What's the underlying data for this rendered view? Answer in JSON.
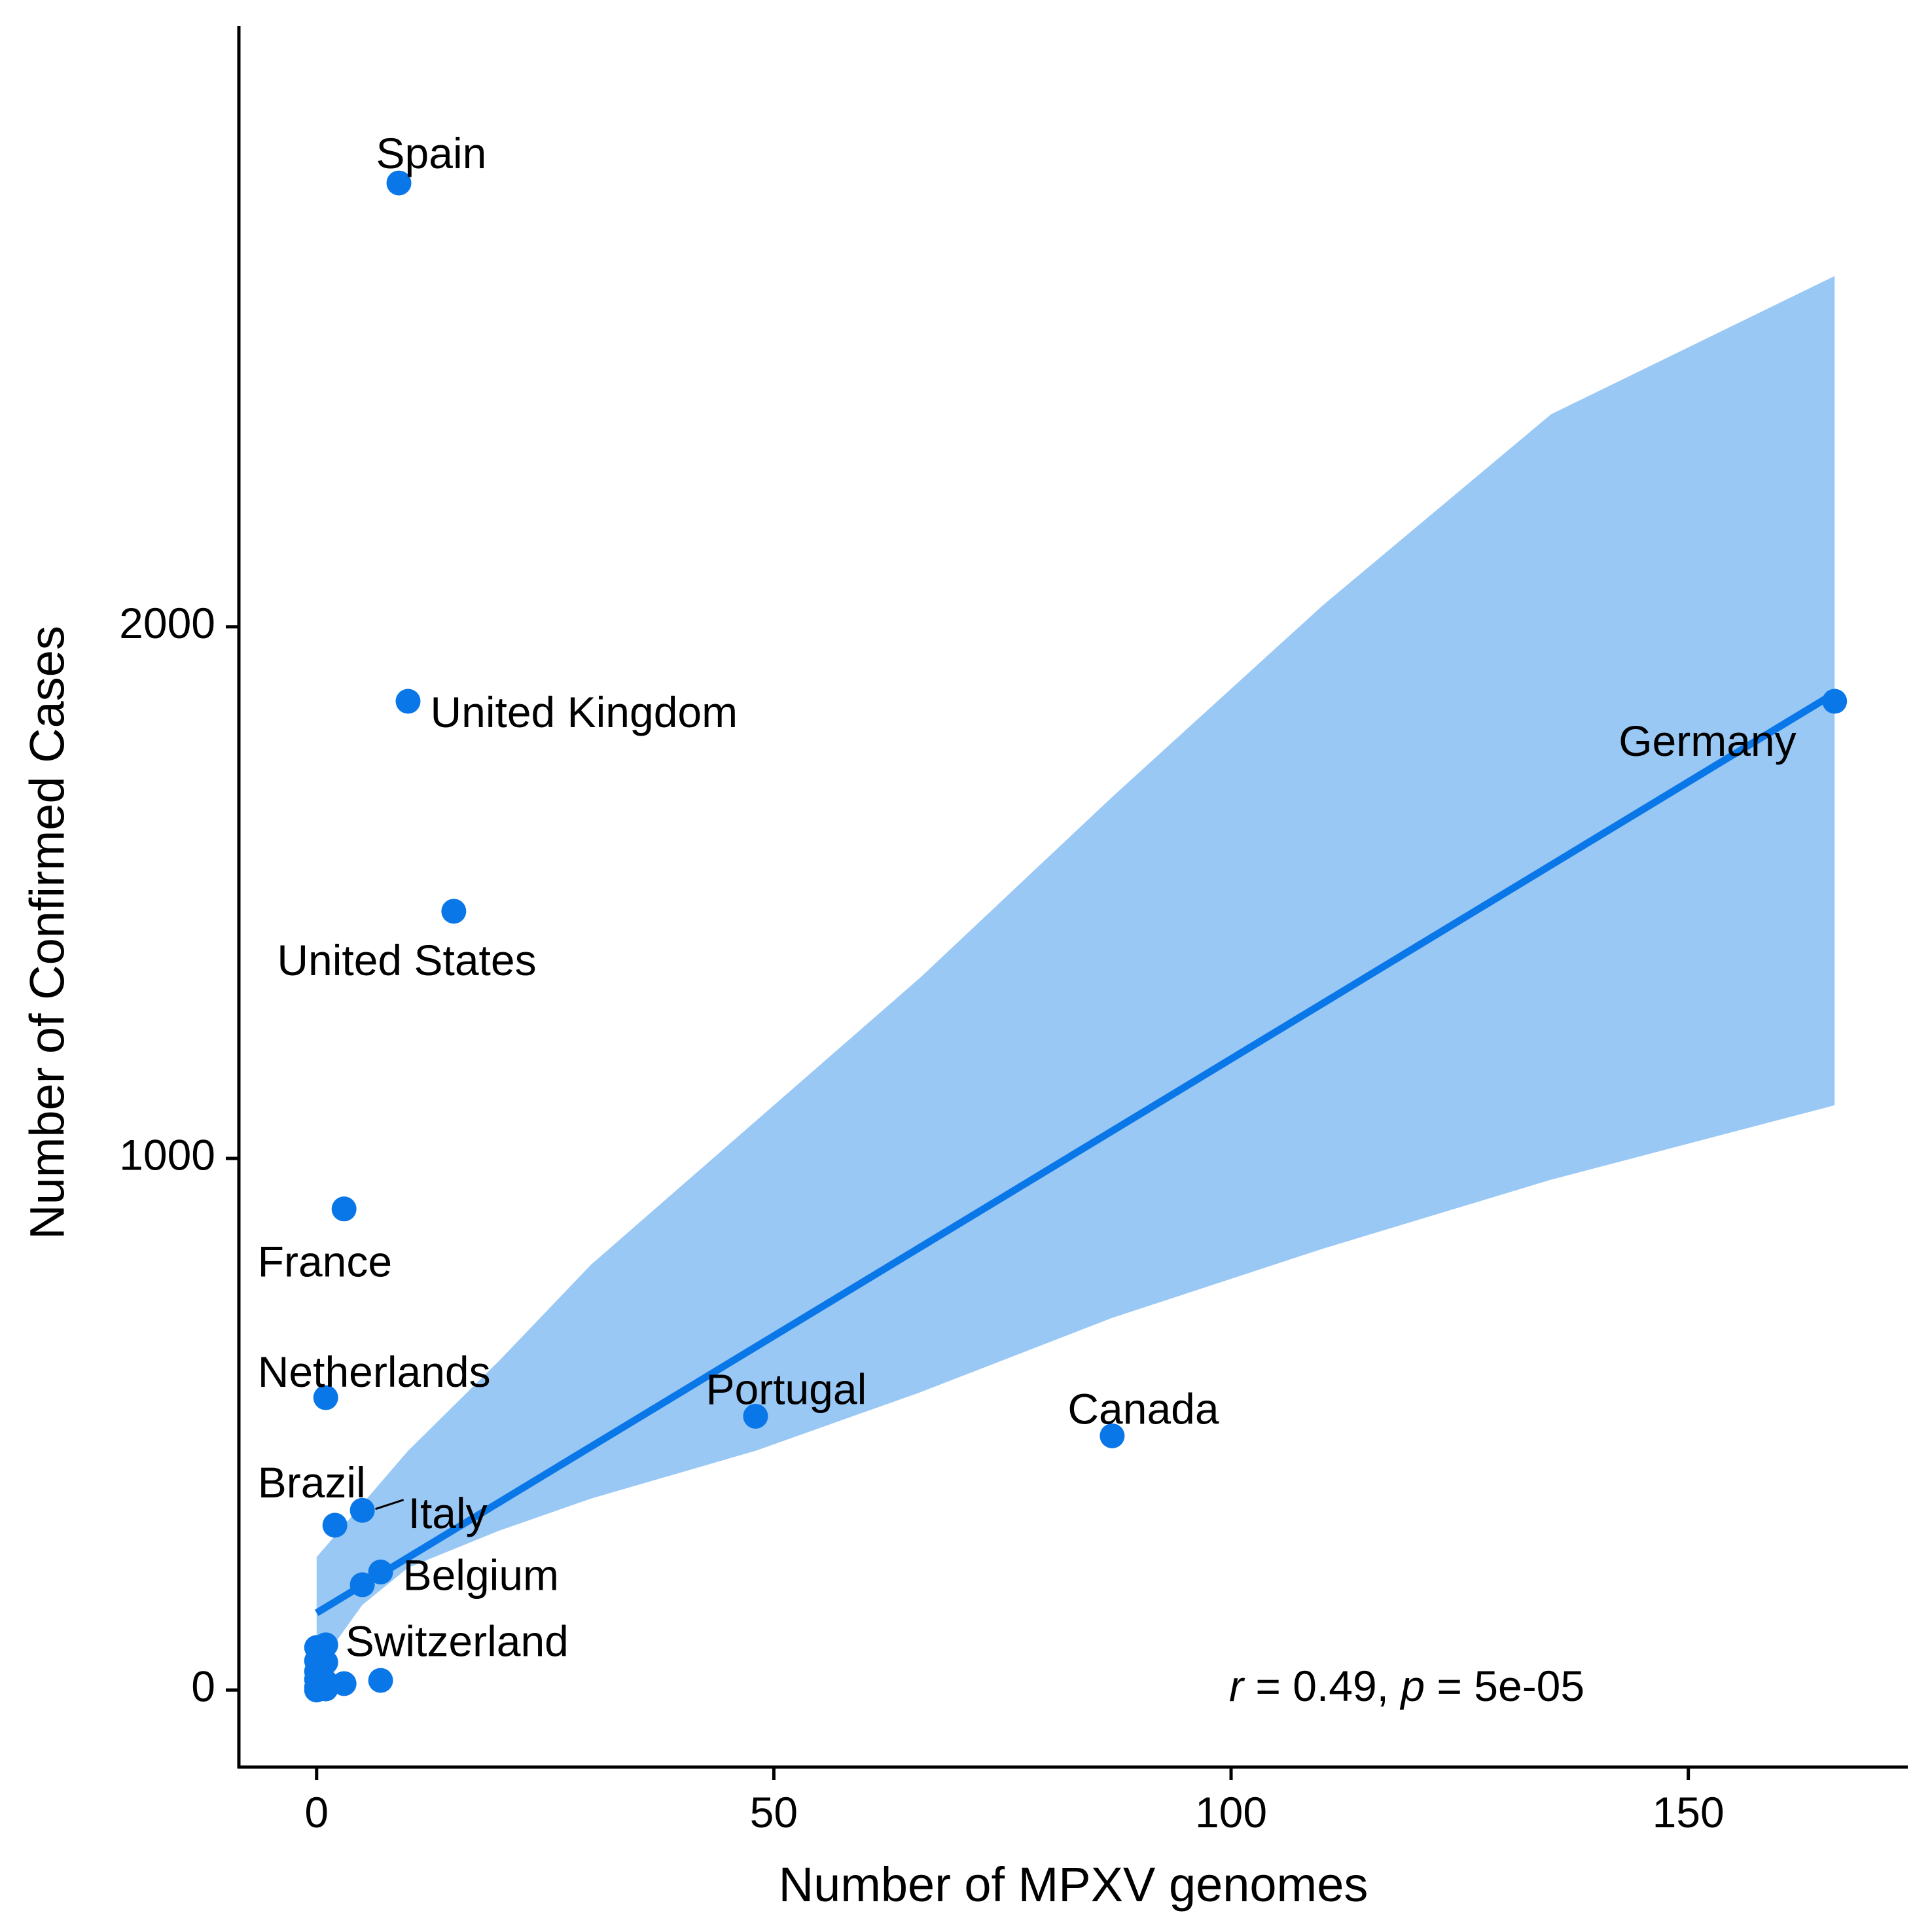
{
  "chart_data": {
    "type": "scatter",
    "xlabel": "Number of MPXV genomes",
    "ylabel": "Number of Confirmed Cases",
    "xlim": [
      -8.5,
      174
    ],
    "ylim": [
      -145,
      3130
    ],
    "x_ticks": [
      0,
      50,
      100,
      150
    ],
    "y_ticks": [
      0,
      1000,
      2000
    ],
    "grid": false,
    "colors": {
      "point": "#0a77e8",
      "line": "#0a77e8",
      "band": "#9ac8f5",
      "axis": "#000000"
    },
    "points": [
      {
        "x": 9,
        "y": 2835,
        "label": "Spain"
      },
      {
        "x": 10,
        "y": 1860,
        "label": "United Kingdom"
      },
      {
        "x": 15,
        "y": 1465,
        "label": "United States"
      },
      {
        "x": 166,
        "y": 1860,
        "label": "Germany"
      },
      {
        "x": 3,
        "y": 905,
        "label": "France"
      },
      {
        "x": 1,
        "y": 550,
        "label": "Netherlands"
      },
      {
        "x": 48,
        "y": 515,
        "label": "Portugal"
      },
      {
        "x": 87,
        "y": 478,
        "label": "Canada"
      },
      {
        "x": 2,
        "y": 310,
        "label": "Brazil"
      },
      {
        "x": 5,
        "y": 338,
        "label": "Italy"
      },
      {
        "x": 7,
        "y": 222,
        "label": "Belgium"
      },
      {
        "x": 5,
        "y": 198,
        "label": ""
      },
      {
        "x": 1,
        "y": 85,
        "label": "Switzerland"
      },
      {
        "x": 0,
        "y": 80,
        "label": ""
      },
      {
        "x": 0,
        "y": 55,
        "label": ""
      },
      {
        "x": 1,
        "y": 52,
        "label": ""
      },
      {
        "x": 0,
        "y": 35,
        "label": ""
      },
      {
        "x": 0,
        "y": 20,
        "label": ""
      },
      {
        "x": 1,
        "y": 15,
        "label": ""
      },
      {
        "x": 0,
        "y": 5,
        "label": ""
      },
      {
        "x": 3,
        "y": 12,
        "label": ""
      },
      {
        "x": 7,
        "y": 18,
        "label": ""
      },
      {
        "x": 0,
        "y": 0,
        "label": ""
      },
      {
        "x": 1,
        "y": 2,
        "label": ""
      }
    ],
    "regression": {
      "x0": 0,
      "y0": 145,
      "x1": 166,
      "y1": 1875
    },
    "confidence_band": {
      "upper": [
        [
          0,
          250
        ],
        [
          5,
          350
        ],
        [
          10,
          450
        ],
        [
          20,
          620
        ],
        [
          30,
          800
        ],
        [
          48,
          1070
        ],
        [
          66,
          1340
        ],
        [
          87,
          1680
        ],
        [
          110,
          2040
        ],
        [
          135,
          2400
        ],
        [
          166,
          2660
        ]
      ],
      "lower": [
        [
          0,
          40
        ],
        [
          5,
          160
        ],
        [
          10,
          230
        ],
        [
          20,
          300
        ],
        [
          30,
          360
        ],
        [
          48,
          450
        ],
        [
          66,
          560
        ],
        [
          87,
          700
        ],
        [
          110,
          830
        ],
        [
          135,
          960
        ],
        [
          166,
          1100
        ]
      ]
    },
    "annotation": {
      "r_symbol": "r",
      "r_text": " = 0.49, ",
      "p_symbol": "p",
      "p_text": " = 5e-05"
    }
  }
}
